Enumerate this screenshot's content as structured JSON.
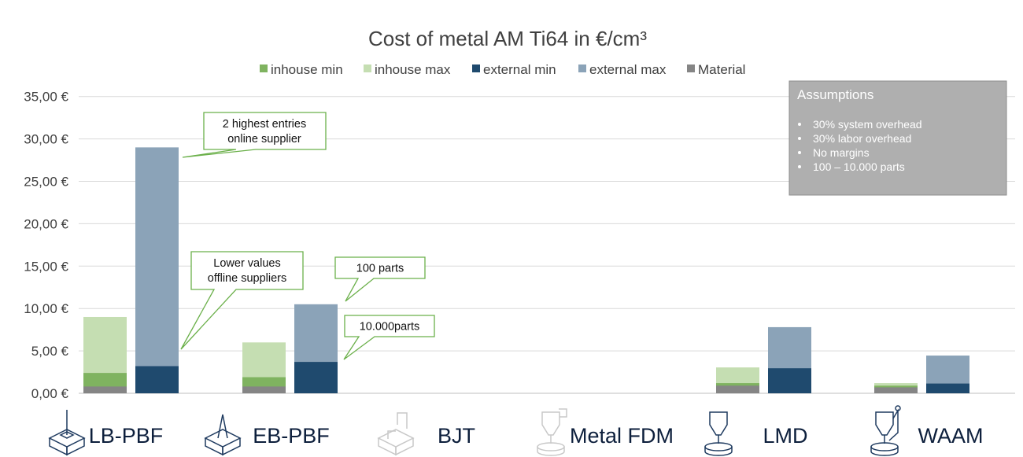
{
  "chart_data": {
    "type": "bar",
    "title": "Cost of metal AM Ti64 in €/cm³",
    "y_tick_labels": [
      "0,00 €",
      "5,00 €",
      "10,00 €",
      "15,00 €",
      "20,00 €",
      "25,00 €",
      "30,00 €",
      "35,00 €"
    ],
    "ylim": [
      0,
      35
    ],
    "grid": true,
    "legend_position": "top",
    "categories": [
      "LB-PBF",
      "EB-PBF",
      "BJT",
      "Metal FDM",
      "LMD",
      "WAAM"
    ],
    "category_faded": [
      false,
      false,
      true,
      true,
      false,
      false
    ],
    "series": [
      {
        "name": "inhouse min",
        "color": "#7fb360",
        "stack": "inhouse",
        "values": [
          2.4,
          1.9,
          0,
          0,
          1.2,
          0.9
        ]
      },
      {
        "name": "inhouse max",
        "color": "#c5deb2",
        "stack": "inhouse",
        "values": [
          9.0,
          6.0,
          0,
          0,
          3.05,
          1.2
        ]
      },
      {
        "name": "external min",
        "color": "#1f4a6e",
        "stack": "external",
        "values": [
          3.2,
          3.7,
          0,
          0,
          2.95,
          1.15
        ]
      },
      {
        "name": "external max",
        "color": "#8ba3b8",
        "stack": "external",
        "values": [
          29.0,
          10.5,
          0,
          0,
          7.8,
          4.45
        ]
      },
      {
        "name": "Material",
        "color": "#858585",
        "stack": "inhouse",
        "values": [
          0.8,
          0.8,
          0,
          0,
          0.9,
          0.7
        ]
      }
    ],
    "annotations": [
      {
        "lines": [
          "2 highest entries",
          "online supplier"
        ]
      },
      {
        "lines": [
          "Lower values",
          "offline suppliers"
        ]
      },
      {
        "lines": [
          "100 parts"
        ]
      },
      {
        "lines": [
          "10.000parts"
        ]
      }
    ],
    "assumptions": {
      "title": "Assumptions",
      "items": [
        "30% system overhead",
        "30% labor overhead",
        "No margins",
        "100 – 10.000 parts"
      ]
    },
    "colors": {
      "grid": "#d9d9d9",
      "callout_border": "#6bb04a",
      "assumptions_bg": "#afafaf",
      "icon": "#1e3a5f",
      "icon_faded": "#c8c8c8"
    }
  }
}
